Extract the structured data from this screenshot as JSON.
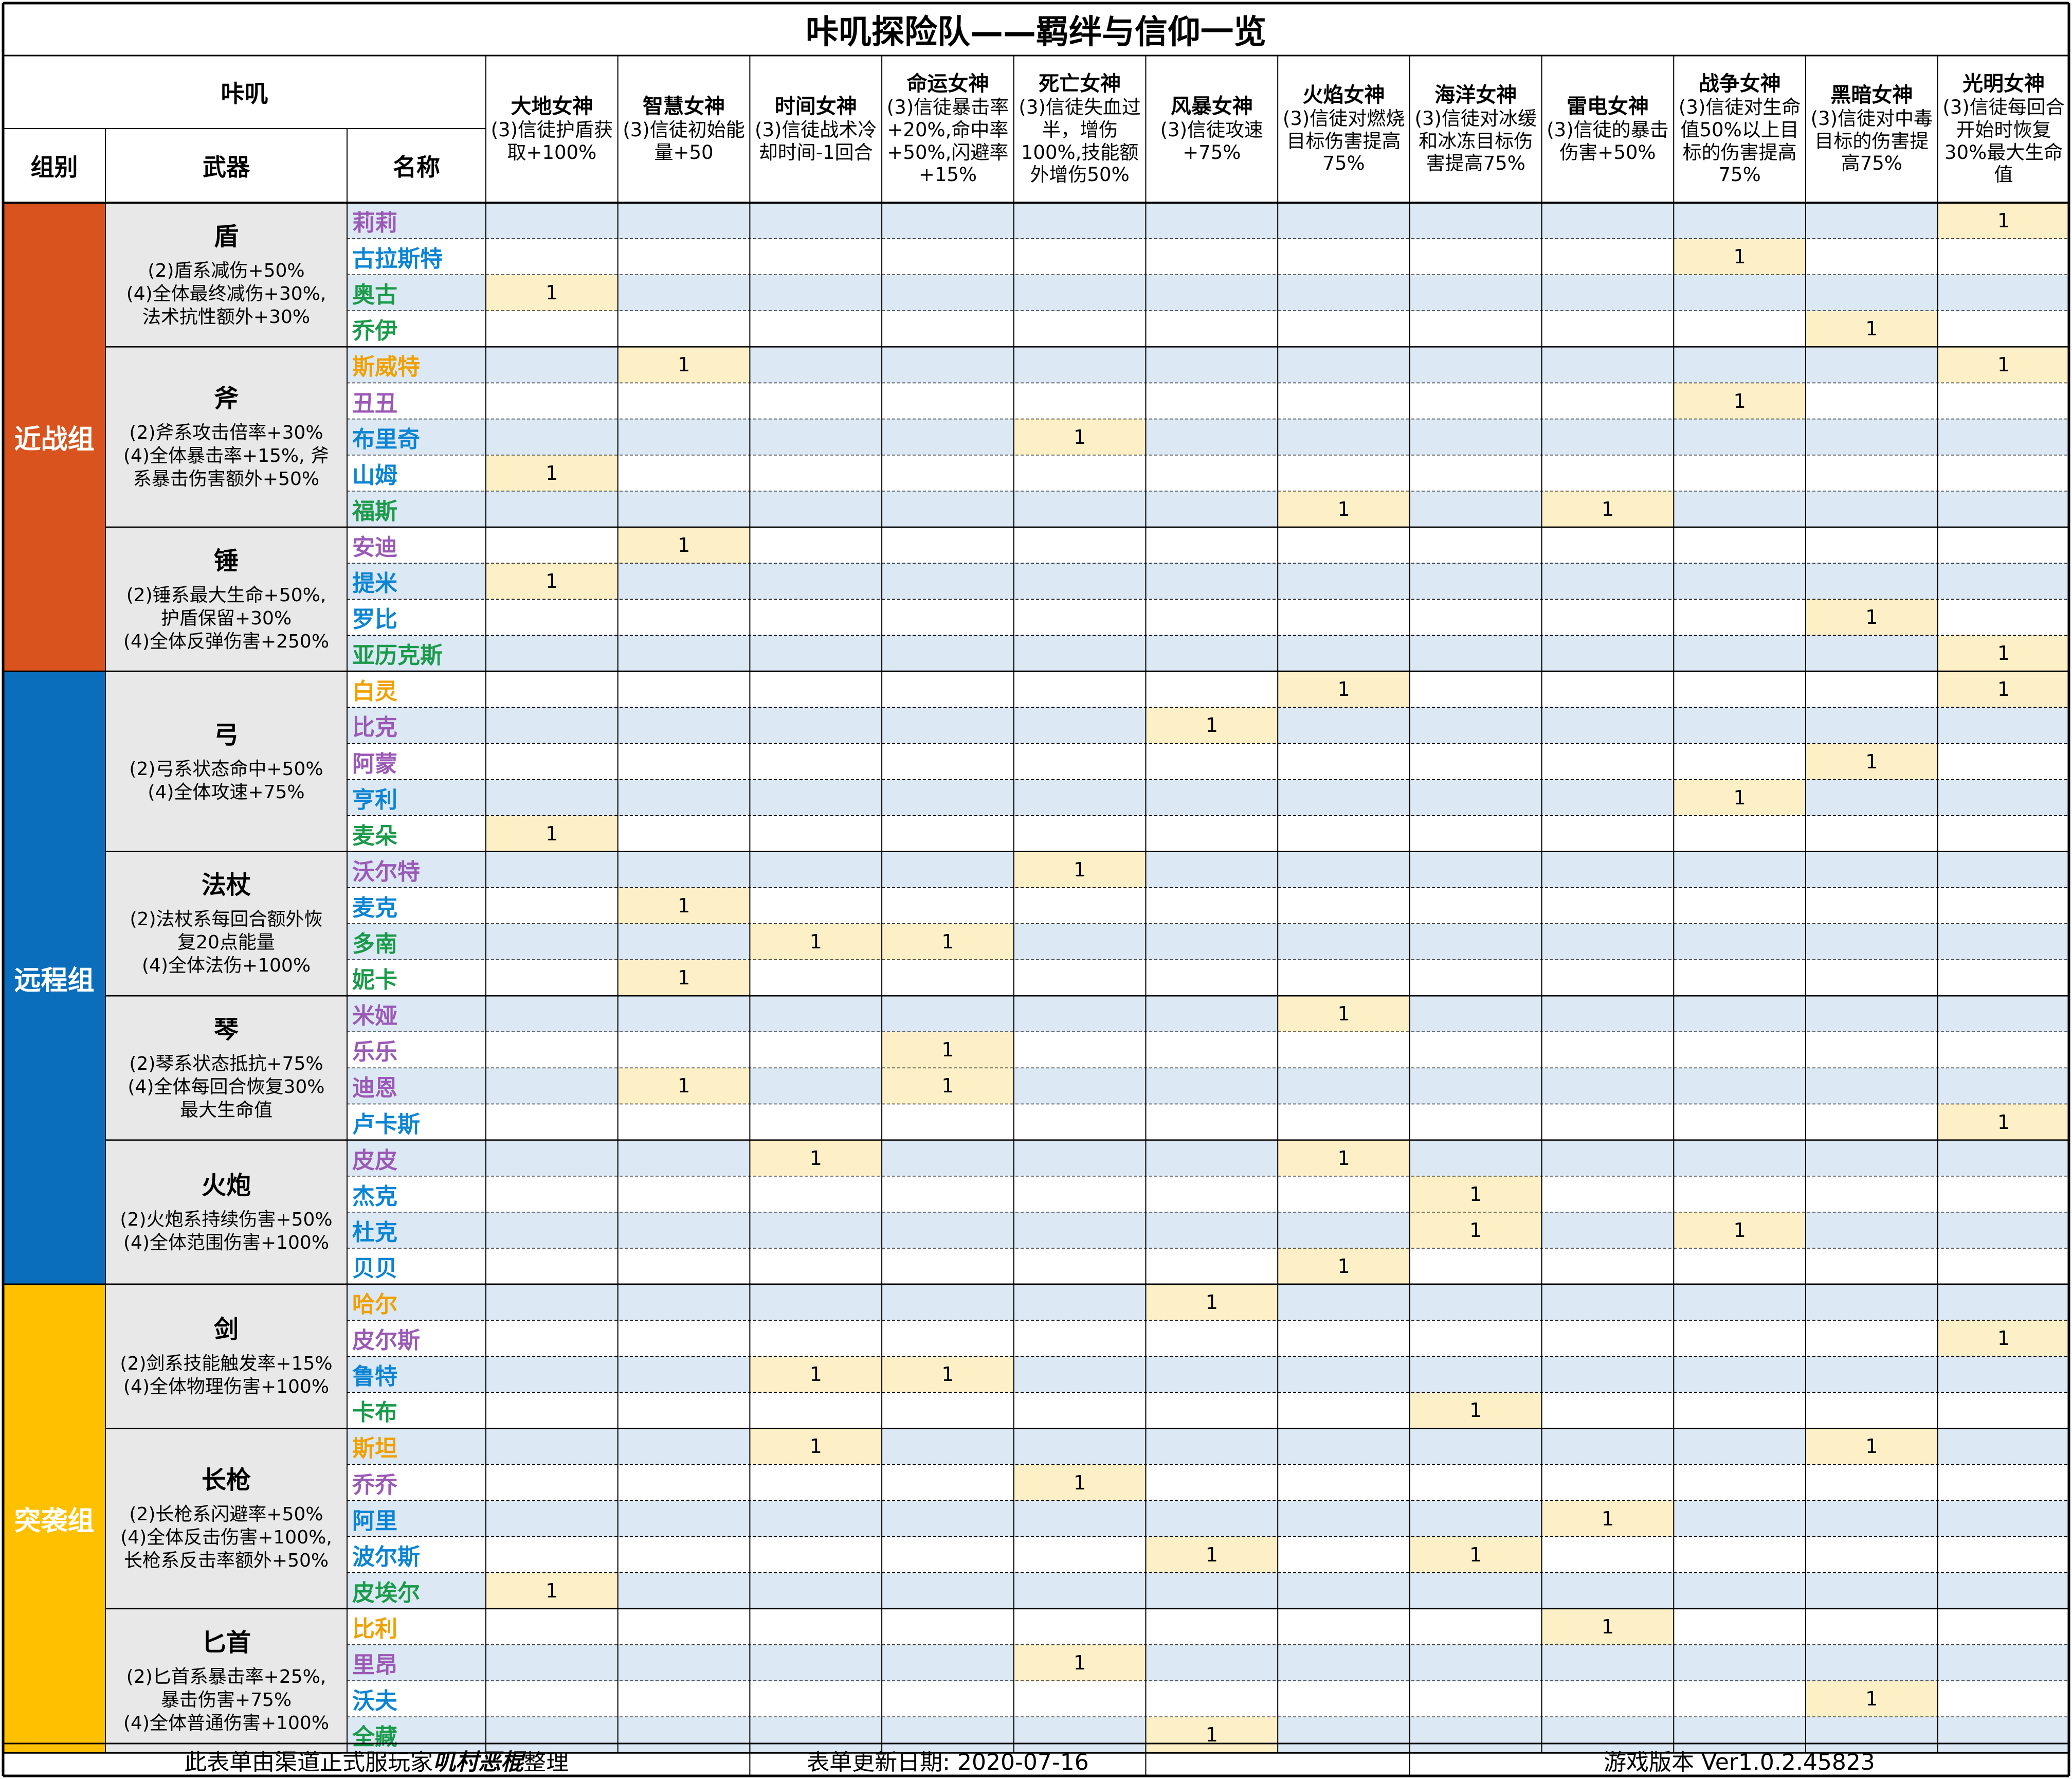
{
  "title": "咔叽探险队——羁绊与信仰一览",
  "header": {
    "kazi": "咔叽",
    "group": "组别",
    "weapon": "武器",
    "name": "名称"
  },
  "gods": [
    {
      "name": "大地女神",
      "desc": "(3)信徒护盾获取+100%"
    },
    {
      "name": "智慧女神",
      "desc": "(3)信徒初始能量+50"
    },
    {
      "name": "时间女神",
      "desc": "(3)信徒战术冷却时间-1回合"
    },
    {
      "name": "命运女神",
      "desc": "(3)信徒暴击率+20%,命中率+50%,闪避率+15%"
    },
    {
      "name": "死亡女神",
      "desc": "(3)信徒失血过半，增伤100%,技能额外增伤50%"
    },
    {
      "name": "风暴女神",
      "desc": "(3)信徒攻速+75%"
    },
    {
      "name": "火焰女神",
      "desc": "(3)信徒对燃烧目标伤害提高75%"
    },
    {
      "name": "海洋女神",
      "desc": "(3)信徒对冰缓和冰冻目标伤害提高75%"
    },
    {
      "name": "雷电女神",
      "desc": "(3)信徒的暴击伤害+50%"
    },
    {
      "name": "战争女神",
      "desc": "(3)信徒对生命值50%以上目标的伤害提高75%"
    },
    {
      "name": "黑暗女神",
      "desc": "(3)信徒对中毒目标的伤害提高75%"
    },
    {
      "name": "光明女神",
      "desc": "(3)信徒每回合开始时恢复30%最大生命值"
    }
  ],
  "colors": {
    "melee": "#d9531e",
    "ranged": "#0a6ebd",
    "assault": "#ffc000",
    "purple": "#9b59b6",
    "blue": "#0b84d4",
    "green": "#1a9a4a",
    "orange": "#f0a000",
    "row_blue": "#dce8f4",
    "mark": "#fdf0c6",
    "weapon_bg": "#e8e8e8"
  },
  "groups": [
    {
      "label": "近战组",
      "color": "#d9531e",
      "weapons": [
        {
          "name": "盾",
          "desc": [
            "(2)盾系减伤+50%",
            "(4)全体最终减伤+30%,",
            "法术抗性额外+30%"
          ],
          "members": [
            {
              "name": "莉莉",
              "color": "#9b59b6",
              "marks": [
                11
              ]
            },
            {
              "name": "古拉斯特",
              "color": "#0b84d4",
              "marks": [
                9
              ]
            },
            {
              "name": "奥古",
              "color": "#1a9a4a",
              "marks": [
                0
              ]
            },
            {
              "name": "乔伊",
              "color": "#1a9a4a",
              "marks": [
                10
              ]
            }
          ]
        },
        {
          "name": "斧",
          "desc": [
            "(2)斧系攻击倍率+30%",
            "(4)全体暴击率+15%, 斧",
            "系暴击伤害额外+50%"
          ],
          "members": [
            {
              "name": "斯威特",
              "color": "#f0a000",
              "marks": [
                1,
                11
              ]
            },
            {
              "name": "丑丑",
              "color": "#9b59b6",
              "marks": [
                9
              ]
            },
            {
              "name": "布里奇",
              "color": "#0b84d4",
              "marks": [
                4
              ]
            },
            {
              "name": "山姆",
              "color": "#0b84d4",
              "marks": [
                0
              ]
            },
            {
              "name": "福斯",
              "color": "#1a9a4a",
              "marks": [
                6,
                8
              ]
            }
          ]
        },
        {
          "name": "锤",
          "desc": [
            "(2)锤系最大生命+50%,",
            "护盾保留+30%",
            "(4)全体反弹伤害+250%"
          ],
          "members": [
            {
              "name": "安迪",
              "color": "#9b59b6",
              "marks": [
                1
              ]
            },
            {
              "name": "提米",
              "color": "#0b84d4",
              "marks": [
                0
              ]
            },
            {
              "name": "罗比",
              "color": "#0b84d4",
              "marks": [
                10
              ]
            },
            {
              "name": "亚历克斯",
              "color": "#1a9a4a",
              "marks": [
                11
              ]
            }
          ]
        }
      ]
    },
    {
      "label": "远程组",
      "color": "#0a6ebd",
      "weapons": [
        {
          "name": "弓",
          "desc": [
            "(2)弓系状态命中+50%",
            "(4)全体攻速+75%"
          ],
          "members": [
            {
              "name": "白灵",
              "color": "#f0a000",
              "marks": [
                6,
                11
              ]
            },
            {
              "name": "比克",
              "color": "#9b59b6",
              "marks": [
                5
              ]
            },
            {
              "name": "阿蒙",
              "color": "#9b59b6",
              "marks": [
                10
              ]
            },
            {
              "name": "亨利",
              "color": "#0b84d4",
              "marks": [
                9
              ]
            },
            {
              "name": "麦朵",
              "color": "#1a9a4a",
              "marks": [
                0
              ]
            }
          ]
        },
        {
          "name": "法杖",
          "desc": [
            "(2)法杖系每回合额外恢",
            "复20点能量",
            "(4)全体法伤+100%"
          ],
          "members": [
            {
              "name": "沃尔特",
              "color": "#9b59b6",
              "marks": [
                4
              ]
            },
            {
              "name": "麦克",
              "color": "#0b84d4",
              "marks": [
                1
              ]
            },
            {
              "name": "多南",
              "color": "#1a9a4a",
              "marks": [
                2,
                3
              ]
            },
            {
              "name": "妮卡",
              "color": "#1a9a4a",
              "marks": [
                1
              ]
            }
          ]
        },
        {
          "name": "琴",
          "desc": [
            "(2)琴系状态抵抗+75%",
            "(4)全体每回合恢复30%",
            "最大生命值"
          ],
          "members": [
            {
              "name": "米娅",
              "color": "#9b59b6",
              "marks": [
                6
              ]
            },
            {
              "name": "乐乐",
              "color": "#9b59b6",
              "marks": [
                3
              ]
            },
            {
              "name": "迪恩",
              "color": "#9b59b6",
              "marks": [
                1,
                3
              ]
            },
            {
              "name": "卢卡斯",
              "color": "#0b84d4",
              "marks": [
                11
              ]
            }
          ]
        },
        {
          "name": "火炮",
          "desc": [
            "(2)火炮系持续伤害+50%",
            "(4)全体范围伤害+100%"
          ],
          "members": [
            {
              "name": "皮皮",
              "color": "#9b59b6",
              "marks": [
                2,
                6
              ]
            },
            {
              "name": "杰克",
              "color": "#0b84d4",
              "marks": [
                7
              ]
            },
            {
              "name": "杜克",
              "color": "#0b84d4",
              "marks": [
                7,
                9
              ]
            },
            {
              "name": "贝贝",
              "color": "#0b84d4",
              "marks": [
                6
              ]
            }
          ]
        }
      ]
    },
    {
      "label": "突袭组",
      "color": "#ffc000",
      "weapons": [
        {
          "name": "剑",
          "desc": [
            "(2)剑系技能触发率+15%",
            "(4)全体物理伤害+100%"
          ],
          "members": [
            {
              "name": "哈尔",
              "color": "#f0a000",
              "marks": [
                5
              ]
            },
            {
              "name": "皮尔斯",
              "color": "#9b59b6",
              "marks": [
                11
              ]
            },
            {
              "name": "鲁特",
              "color": "#0b84d4",
              "marks": [
                2,
                3
              ]
            },
            {
              "name": "卡布",
              "color": "#1a9a4a",
              "marks": [
                7
              ]
            }
          ]
        },
        {
          "name": "长枪",
          "desc": [
            "(2)长枪系闪避率+50%",
            "(4)全体反击伤害+100%,",
            "长枪系反击率额外+50%"
          ],
          "members": [
            {
              "name": "斯坦",
              "color": "#f0a000",
              "marks": [
                2,
                10
              ]
            },
            {
              "name": "乔乔",
              "color": "#9b59b6",
              "marks": [
                4
              ]
            },
            {
              "name": "阿里",
              "color": "#0b84d4",
              "marks": [
                8
              ]
            },
            {
              "name": "波尔斯",
              "color": "#0b84d4",
              "marks": [
                5,
                7
              ]
            },
            {
              "name": "皮埃尔",
              "color": "#1a9a4a",
              "marks": [
                0
              ]
            }
          ]
        },
        {
          "name": "匕首",
          "desc": [
            "(2)匕首系暴击率+25%,",
            "暴击伤害+75%",
            "(4)全体普通伤害+100%"
          ],
          "members": [
            {
              "name": "比利",
              "color": "#f0a000",
              "marks": [
                8
              ]
            },
            {
              "name": "里昂",
              "color": "#9b59b6",
              "marks": [
                4
              ]
            },
            {
              "name": "沃夫",
              "color": "#0b84d4",
              "marks": [
                10
              ]
            },
            {
              "name": "全藏",
              "color": "#1a9a4a",
              "marks": [
                5
              ]
            }
          ]
        }
      ]
    }
  ],
  "mark_value": "1",
  "footer": {
    "credit_prefix": "此表单由渠道正式服玩家",
    "credit_author": "叽村恶棍",
    "credit_suffix": "整理",
    "date": "表单更新日期: 2020-07-16",
    "version": "游戏版本 Ver1.0.2.45823"
  }
}
